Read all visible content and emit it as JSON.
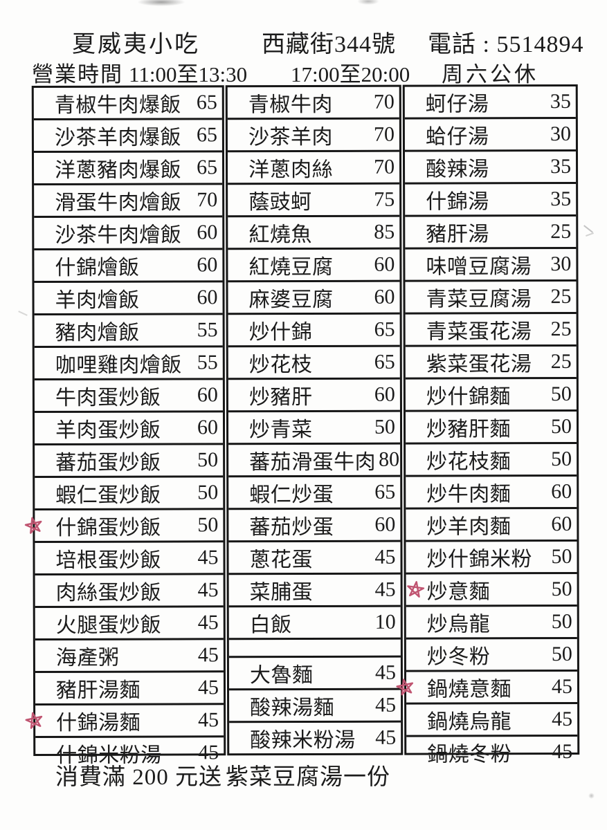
{
  "header": {
    "restaurant_name": "夏威夷小吃",
    "address": "西藏街344號",
    "phone": "電話 : 5514894",
    "hours_label": "營業時間",
    "hours_lunch": "11:00至13:30",
    "hours_dinner": "17:00至20:00",
    "closed_day": "周六公休"
  },
  "menu": {
    "columns": [
      {
        "items": [
          {
            "name": "青椒牛肉爆飯",
            "price": "65"
          },
          {
            "name": "沙茶羊肉爆飯",
            "price": "65"
          },
          {
            "name": "洋蔥豬肉爆飯",
            "price": "65"
          },
          {
            "name": "滑蛋牛肉燴飯",
            "price": "70"
          },
          {
            "name": "沙茶牛肉燴飯",
            "price": "60"
          },
          {
            "name": "什錦燴飯",
            "price": "60"
          },
          {
            "name": "羊肉燴飯",
            "price": "60"
          },
          {
            "name": "豬肉燴飯",
            "price": "55"
          },
          {
            "name": "咖哩雞肉燴飯",
            "price": "55"
          },
          {
            "name": "牛肉蛋炒飯",
            "price": "60"
          },
          {
            "name": "羊肉蛋炒飯",
            "price": "60"
          },
          {
            "name": "蕃茄蛋炒飯",
            "price": "50"
          },
          {
            "name": "蝦仁蛋炒飯",
            "price": "50"
          },
          {
            "name": "什錦蛋炒飯",
            "price": "50",
            "marked": true
          },
          {
            "name": "培根蛋炒飯",
            "price": "45"
          },
          {
            "name": "肉絲蛋炒飯",
            "price": "45"
          },
          {
            "name": "火腿蛋炒飯",
            "price": "45"
          },
          {
            "name": "海產粥",
            "price": "45"
          },
          {
            "name": "豬肝湯麵",
            "price": "45"
          },
          {
            "name": "什錦湯麵",
            "price": "45",
            "marked": true
          },
          {
            "name": "什錦米粉湯",
            "price": "45"
          }
        ]
      },
      {
        "items": [
          {
            "name": "青椒牛肉",
            "price": "70"
          },
          {
            "name": "沙茶羊肉",
            "price": "70"
          },
          {
            "name": "洋蔥肉絲",
            "price": "70"
          },
          {
            "name": "蔭豉蚵",
            "price": "75"
          },
          {
            "name": "紅燒魚",
            "price": "85"
          },
          {
            "name": "紅燒豆腐",
            "price": "60"
          },
          {
            "name": "麻婆豆腐",
            "price": "60"
          },
          {
            "name": "炒什錦",
            "price": "65"
          },
          {
            "name": "炒花枝",
            "price": "65"
          },
          {
            "name": "炒豬肝",
            "price": "60"
          },
          {
            "name": "炒青菜",
            "price": "50"
          },
          {
            "name": "蕃茄滑蛋牛肉",
            "price": "80"
          },
          {
            "name": "蝦仁炒蛋",
            "price": "65"
          },
          {
            "name": "蕃茄炒蛋",
            "price": "60"
          },
          {
            "name": "蔥花蛋",
            "price": "45"
          },
          {
            "name": "菜脯蛋",
            "price": "45"
          },
          {
            "name": "白飯",
            "price": "10"
          },
          {
            "name": "",
            "price": ""
          },
          {
            "name": "大魯麵",
            "price": "45"
          },
          {
            "name": "酸辣湯麵",
            "price": "45"
          },
          {
            "name": "酸辣米粉湯",
            "price": "45"
          }
        ]
      },
      {
        "items": [
          {
            "name": "蚵仔湯",
            "price": "35"
          },
          {
            "name": "蛤仔湯",
            "price": "30"
          },
          {
            "name": "酸辣湯",
            "price": "35"
          },
          {
            "name": "什錦湯",
            "price": "35"
          },
          {
            "name": "豬肝湯",
            "price": "25"
          },
          {
            "name": "味噌豆腐湯",
            "price": "30"
          },
          {
            "name": "青菜豆腐湯",
            "price": "25"
          },
          {
            "name": "青菜蛋花湯",
            "price": "25"
          },
          {
            "name": "紫菜蛋花湯",
            "price": "25"
          },
          {
            "name": "炒什錦麵",
            "price": "50"
          },
          {
            "name": "炒豬肝麵",
            "price": "50"
          },
          {
            "name": "炒花枝麵",
            "price": "50"
          },
          {
            "name": "炒牛肉麵",
            "price": "60"
          },
          {
            "name": "炒羊肉麵",
            "price": "60"
          },
          {
            "name": "炒什錦米粉",
            "price": "50"
          },
          {
            "name": "炒意麵",
            "price": "50",
            "marked": true,
            "mark_pos": "inside"
          },
          {
            "name": "炒烏龍",
            "price": "50"
          },
          {
            "name": "炒冬粉",
            "price": "50"
          },
          {
            "name": "鍋燒意麵",
            "price": "45",
            "marked": true
          },
          {
            "name": "鍋燒烏龍",
            "price": "45"
          },
          {
            "name": "鍋燒冬粉",
            "price": "45"
          }
        ]
      }
    ]
  },
  "footer": {
    "promo_condition": "消費滿 200 元送",
    "promo_gift": "紫菜豆腐湯一份"
  },
  "colors": {
    "ink": "#1b1b1b",
    "border": "#161616",
    "mark": "#c05571",
    "paper": "#fdfdfc"
  }
}
